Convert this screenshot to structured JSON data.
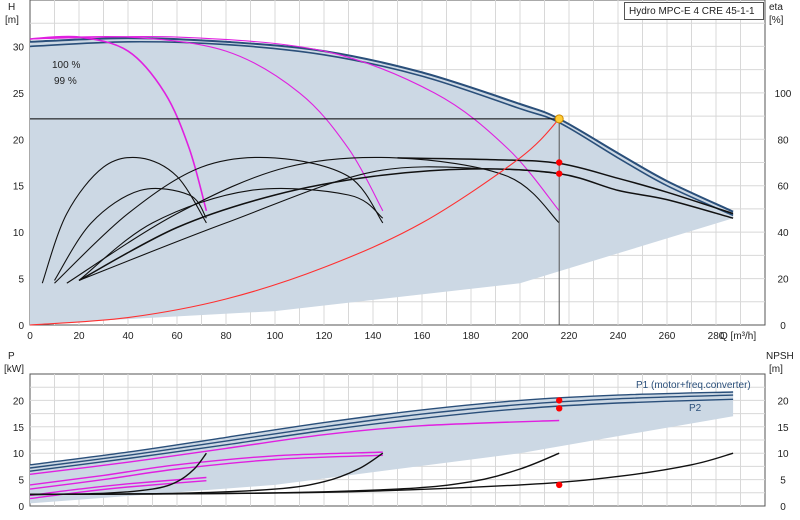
{
  "chart_data": [
    {
      "type": "line",
      "title": "Hydro MPC-E 4 CRE 45-1-1",
      "ylabel_left": "H",
      "ylabel_left_unit": "[m]",
      "ylabel_right": "eta",
      "ylabel_right_unit": "[%]",
      "xlabel": "Q [m³/h]",
      "xlim": [
        0,
        300
      ],
      "ylim": [
        0,
        35
      ],
      "ylim_right": [
        0,
        140
      ],
      "x_ticks": [
        0,
        20,
        40,
        60,
        80,
        100,
        120,
        140,
        160,
        180,
        200,
        220,
        240,
        260,
        280
      ],
      "y_ticks": [
        0,
        5,
        10,
        15,
        20,
        25,
        30
      ],
      "y_right_ticks": [
        0,
        20,
        40,
        60,
        80,
        100
      ],
      "grid": true,
      "annotations": [
        "100 %",
        "99 %"
      ],
      "duty_point": {
        "q": 216,
        "h": 22.2
      },
      "series": [
        {
          "role": "qh-100",
          "color": "#2a4f7a",
          "x": [
            0,
            40,
            80,
            120,
            160,
            200,
            216,
            240,
            260,
            287
          ],
          "y": [
            30.5,
            30.9,
            30.5,
            29.5,
            27.2,
            23.8,
            22.2,
            18.5,
            15.5,
            12.2
          ]
        },
        {
          "role": "qh-99",
          "color": "#2a4f7a",
          "x": [
            0,
            40,
            80,
            120,
            160,
            200,
            216,
            240,
            260,
            287
          ],
          "y": [
            30.0,
            30.5,
            30.2,
            29.1,
            26.8,
            23.3,
            21.8,
            18.0,
            15.0,
            11.8
          ]
        },
        {
          "role": "qh-1pump",
          "color": "#e020e0",
          "x": [
            0,
            20,
            40,
            55,
            65,
            72
          ],
          "y": [
            30.8,
            31.0,
            29.5,
            25.0,
            19.0,
            12.3
          ]
        },
        {
          "role": "qh-2pumps",
          "color": "#e020e0",
          "x": [
            0,
            40,
            80,
            110,
            130,
            144
          ],
          "y": [
            30.8,
            31.0,
            29.5,
            25.0,
            19.0,
            12.3
          ]
        },
        {
          "role": "qh-3pumps",
          "color": "#e020e0",
          "x": [
            0,
            60,
            120,
            165,
            195,
            216
          ],
          "y": [
            30.8,
            31.0,
            29.5,
            25.0,
            19.0,
            12.3
          ]
        },
        {
          "role": "eta-1pump-a",
          "color": "#111111",
          "x": [
            5,
            15,
            30,
            45,
            60,
            72
          ],
          "y": [
            4.5,
            12.0,
            17.0,
            18.0,
            16.0,
            11.0
          ]
        },
        {
          "role": "eta-1pump-b",
          "color": "#111111",
          "x": [
            10,
            25,
            45,
            65,
            72
          ],
          "y": [
            4.8,
            11.0,
            14.5,
            14.0,
            11.5
          ]
        },
        {
          "role": "eta-2pumps-a",
          "color": "#111111",
          "x": [
            10,
            40,
            70,
            100,
            130,
            144
          ],
          "y": [
            4.5,
            12.0,
            17.0,
            18.0,
            16.0,
            11.0
          ]
        },
        {
          "role": "eta-2pumps-b",
          "color": "#111111",
          "x": [
            20,
            50,
            90,
            130,
            144
          ],
          "y": [
            4.8,
            11.0,
            14.5,
            14.0,
            11.5
          ]
        },
        {
          "role": "eta-3pumps-a",
          "color": "#111111",
          "x": [
            15,
            60,
            105,
            150,
            195,
            216
          ],
          "y": [
            4.5,
            12.0,
            17.0,
            18.0,
            16.0,
            11.0
          ]
        },
        {
          "role": "eta-3pumps-b",
          "color": "#111111",
          "x": [
            20,
            80,
            140,
            190,
            216
          ],
          "y": [
            4.8,
            11.0,
            16.5,
            16.8,
            16.3
          ]
        },
        {
          "role": "eta-total",
          "color": "#111111",
          "x": [
            20,
            60,
            100,
            140,
            180,
            216,
            240,
            260,
            287
          ],
          "y": [
            4.8,
            10.5,
            14.0,
            16.0,
            16.8,
            16.3,
            14.5,
            13.5,
            11.5
          ]
        },
        {
          "role": "eta-total-2",
          "color": "#111111",
          "x": [
            150,
            190,
            216,
            240,
            260,
            287
          ],
          "y": [
            18.0,
            17.8,
            17.4,
            15.8,
            14.3,
            12.0
          ]
        },
        {
          "role": "system-curve",
          "color": "#ff3030",
          "x": [
            0,
            40,
            80,
            120,
            160,
            200,
            216
          ],
          "y": [
            0.0,
            0.8,
            2.8,
            6.2,
            11.0,
            18.0,
            22.2
          ]
        }
      ],
      "markers": [
        {
          "q": 216,
          "h": 17.5,
          "color": "#ff0000"
        },
        {
          "q": 216,
          "h": 16.3,
          "color": "#ff0000"
        }
      ]
    },
    {
      "type": "line",
      "ylabel_left": "P",
      "ylabel_left_unit": "[kW]",
      "ylabel_right": "NPSH",
      "ylabel_right_unit": "[m]",
      "xlim": [
        0,
        300
      ],
      "ylim": [
        0,
        25
      ],
      "y_ticks": [
        0,
        5,
        10,
        15,
        20
      ],
      "y_right_ticks": [
        0,
        5,
        10,
        15,
        20
      ],
      "grid": true,
      "legend_labels": [
        "P1 (motor+freq.converter)",
        "P2"
      ],
      "series": [
        {
          "role": "p1-total-a",
          "color": "#2a4f7a",
          "x": [
            0,
            40,
            80,
            120,
            160,
            200,
            240,
            287
          ],
          "y": [
            7.8,
            10.2,
            13.0,
            15.8,
            18.2,
            20.0,
            21.0,
            21.6
          ]
        },
        {
          "role": "p1-total-b",
          "color": "#2a4f7a",
          "x": [
            0,
            40,
            80,
            120,
            160,
            200,
            240,
            287
          ],
          "y": [
            7.2,
            9.6,
            12.3,
            15.0,
            17.4,
            19.2,
            20.3,
            21.0
          ]
        },
        {
          "role": "p2-total",
          "color": "#2a4f7a",
          "x": [
            0,
            40,
            80,
            120,
            160,
            200,
            240,
            287
          ],
          "y": [
            6.6,
            9.0,
            11.6,
            14.3,
            16.6,
            18.4,
            19.5,
            20.2
          ]
        },
        {
          "role": "p-3pumps",
          "color": "#e020e0",
          "x": [
            0,
            40,
            80,
            120,
            160,
            216
          ],
          "y": [
            6.0,
            8.3,
            10.9,
            13.5,
            15.2,
            16.2
          ]
        },
        {
          "role": "p-2pumps-a",
          "color": "#e020e0",
          "x": [
            0,
            30,
            60,
            100,
            144
          ],
          "y": [
            4.0,
            5.8,
            7.8,
            9.5,
            10.2
          ]
        },
        {
          "role": "p-2pumps-b",
          "color": "#e020e0",
          "x": [
            0,
            30,
            60,
            100,
            144
          ],
          "y": [
            3.2,
            5.0,
            7.0,
            8.8,
            9.6
          ]
        },
        {
          "role": "p-1pump-a",
          "color": "#e020e0",
          "x": [
            0,
            20,
            40,
            72
          ],
          "y": [
            2.0,
            3.2,
            4.2,
            5.4
          ]
        },
        {
          "role": "p-1pump-b",
          "color": "#e020e0",
          "x": [
            0,
            20,
            40,
            72
          ],
          "y": [
            1.4,
            2.6,
            3.6,
            4.8
          ]
        },
        {
          "role": "npsh-1pump",
          "color": "#111111",
          "x": [
            0,
            30,
            50,
            60,
            67,
            72
          ],
          "y": [
            2.2,
            2.4,
            3.2,
            4.6,
            7.0,
            10.0
          ]
        },
        {
          "role": "npsh-2pumps",
          "color": "#111111",
          "x": [
            0,
            60,
            100,
            120,
            134,
            144
          ],
          "y": [
            2.2,
            2.4,
            3.2,
            4.6,
            7.0,
            10.0
          ]
        },
        {
          "role": "npsh-3pumps",
          "color": "#111111",
          "x": [
            0,
            90,
            150,
            180,
            200,
            216
          ],
          "y": [
            2.2,
            2.4,
            3.2,
            4.6,
            7.0,
            10.0
          ]
        },
        {
          "role": "npsh-total",
          "color": "#111111",
          "x": [
            0,
            120,
            200,
            240,
            270,
            287
          ],
          "y": [
            2.2,
            2.6,
            4.0,
            5.6,
            7.8,
            10.0
          ]
        }
      ],
      "markers": [
        {
          "q": 216,
          "v": 20.0,
          "color": "#ff0000"
        },
        {
          "q": 216,
          "v": 18.5,
          "color": "#ff0000"
        },
        {
          "q": 216,
          "v": 4.0,
          "color": "#ff0000"
        }
      ]
    }
  ]
}
